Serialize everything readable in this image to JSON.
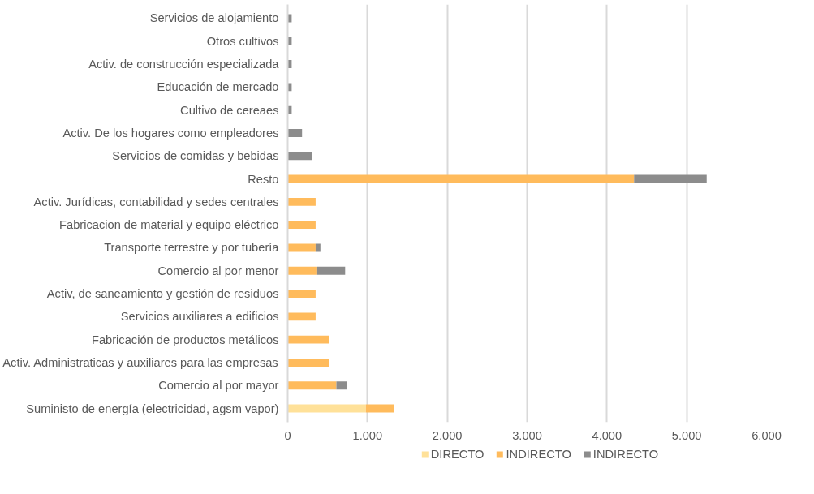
{
  "chart_data": {
    "type": "bar",
    "orientation": "horizontal",
    "stacked": true,
    "categories": [
      "Servicios de alojamiento",
      "Otros cultivos",
      "Activ. de construcción especializada",
      "Educación de mercado",
      "Cultivo de cereaes",
      "Activ. De los hogares como empleadores",
      "Servicios de comidas y bebidas",
      "Resto",
      "Activ. Jurídicas, contabilidad y sedes centrales",
      "Fabricacion de material y equipo eléctrico",
      "Transporte terrestre y por tubería",
      "Comercio al por menor",
      "Activ, de saneamiento y gestión de residuos",
      "Servicios auxiliares a edificios",
      "Fabricación de productos metálicos",
      "Activ. Administraticas y auxiliares para las empresas",
      "Comercio al por mayor",
      "Suministo de energía (electricidad, agsm vapor)"
    ],
    "series": [
      {
        "name": "DIRECTO",
        "color": "#ffe199",
        "values": [
          null,
          null,
          null,
          null,
          null,
          null,
          null,
          null,
          null,
          null,
          null,
          null,
          null,
          null,
          null,
          null,
          null,
          980
        ]
      },
      {
        "name": "INDIRECTO",
        "color": "#ffbb5c",
        "values": [
          null,
          null,
          null,
          null,
          null,
          null,
          null,
          4340,
          350,
          350,
          350,
          360,
          350,
          350,
          520,
          520,
          610,
          350
        ]
      },
      {
        "name": "INDIRECTO",
        "color": "#8c8c8c",
        "values": [
          50,
          50,
          50,
          50,
          50,
          180,
          300,
          910,
          null,
          null,
          60,
          360,
          null,
          null,
          null,
          null,
          130,
          null
        ]
      }
    ],
    "xlim": [
      0,
      6000
    ],
    "xticks": [
      {
        "value": 0,
        "label": "0"
      },
      {
        "value": 1000,
        "label": "1.000"
      },
      {
        "value": 2000,
        "label": "2.000"
      },
      {
        "value": 3000,
        "label": "3.000"
      },
      {
        "value": 4000,
        "label": "4.000"
      },
      {
        "value": 5000,
        "label": "5.000"
      },
      {
        "value": 6000,
        "label": "6.000"
      }
    ],
    "grid": "x",
    "legend": "bottom"
  }
}
